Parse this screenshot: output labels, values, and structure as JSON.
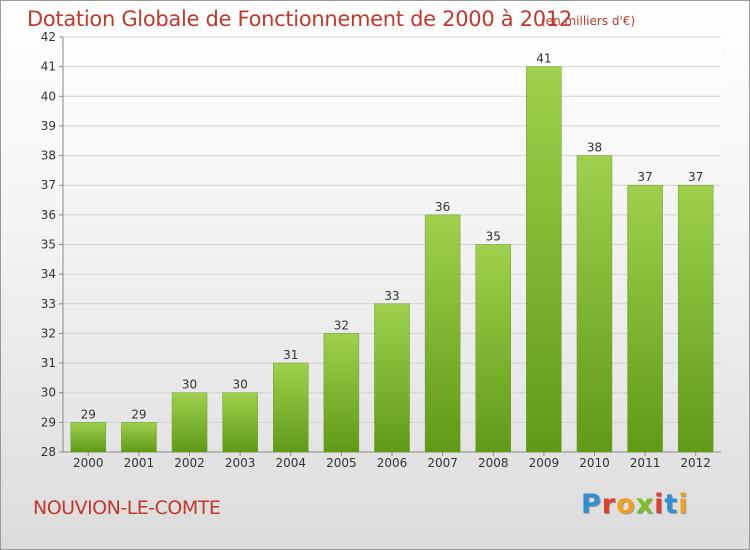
{
  "header": {
    "title": "Dotation Globale de Fonctionnement de 2000 à 2012",
    "subtitle": "(en milliers d'€)"
  },
  "footer": {
    "commune": "NOUVION-LE-COMTE",
    "brand": "Proxiti"
  },
  "colors": {
    "title": "#c0392b",
    "bar_light": "#9fd04e",
    "bar_dark": "#5f9a16",
    "brand_letters": [
      "#2f8fd1",
      "#e03f2b",
      "#f0a21a",
      "#7bbf26",
      "#e03f2b",
      "#2f8fd1",
      "#f0a21a"
    ]
  },
  "chart_data": {
    "type": "bar",
    "categories": [
      "2000",
      "2001",
      "2002",
      "2003",
      "2004",
      "2005",
      "2006",
      "2007",
      "2008",
      "2009",
      "2010",
      "2011",
      "2012"
    ],
    "values": [
      29,
      29,
      30,
      30,
      31,
      32,
      33,
      36,
      35,
      41,
      38,
      37,
      37
    ],
    "ylim": [
      28,
      42
    ],
    "yticks": [
      28,
      29,
      30,
      31,
      32,
      33,
      34,
      35,
      36,
      37,
      38,
      39,
      40,
      41,
      42
    ],
    "grid": true,
    "legend": "none"
  }
}
